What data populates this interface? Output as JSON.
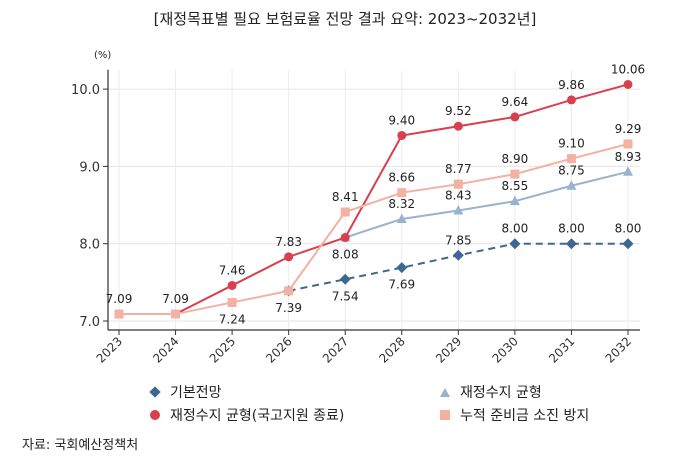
{
  "chart_data": {
    "type": "line",
    "title": "[재정목표별 필요 보험료율 전망 결과 요약: 2023~2032년]",
    "unit_label": "(%)",
    "x": [
      "2023",
      "2024",
      "2025",
      "2026",
      "2027",
      "2028",
      "2029",
      "2030",
      "2031",
      "2032"
    ],
    "yticks": [
      "7.0",
      "8.0",
      "9.0",
      "10.0"
    ],
    "ylim": [
      6.95,
      10.25
    ],
    "grid": true,
    "legend_position": "bottom",
    "series": [
      {
        "name": "재정수지 균형",
        "color": "#98b3cc",
        "marker": "triangle",
        "dashed": false,
        "values": [
          null,
          null,
          null,
          null,
          8.08,
          8.32,
          8.43,
          8.55,
          8.75,
          8.93
        ]
      },
      {
        "name": "기본전망",
        "color": "#3e6891",
        "marker": "diamond",
        "dashed": true,
        "values": [
          null,
          null,
          null,
          7.39,
          7.54,
          7.69,
          7.85,
          8.0,
          8.0,
          8.0
        ]
      },
      {
        "name": "재정수지 균형(국고지원 종료)",
        "color": "#d8404d",
        "marker": "circle",
        "dashed": false,
        "values": [
          7.09,
          7.09,
          7.46,
          7.83,
          8.08,
          9.4,
          9.52,
          9.64,
          9.86,
          10.06
        ]
      },
      {
        "name": "누적 준비금 소진 방지",
        "color": "#f3b1a4",
        "marker": "square",
        "dashed": false,
        "values": [
          7.09,
          7.09,
          7.24,
          7.39,
          8.41,
          8.66,
          8.77,
          8.9,
          9.1,
          9.29
        ]
      }
    ]
  },
  "source": "자료: 국회예산정책처"
}
